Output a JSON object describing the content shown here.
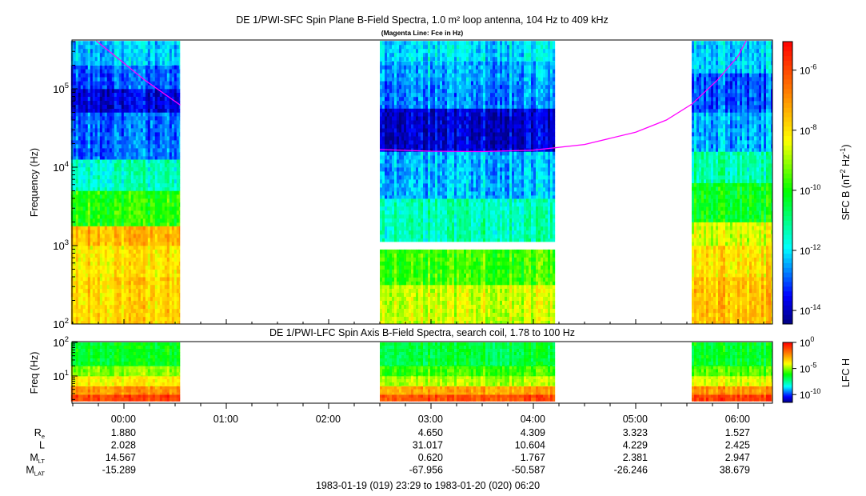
{
  "chart_data": [
    {
      "type": "heatmap",
      "title": "DE 1/PWI-SFC  Spin Plane B-Field Spectra, 1.0 m² loop antenna, 104 Hz to 409 kHz",
      "subtitle": "(Magenta Line: Fce in Hz)",
      "ylabel": "Frequency (Hz)",
      "yscale": "log",
      "ylim_hz": [
        100,
        409000
      ],
      "yticks": [
        {
          "exp": "2"
        },
        {
          "exp": "3"
        },
        {
          "exp": "4"
        },
        {
          "exp": "5"
        }
      ],
      "colorbar": {
        "label": "SFC B (nT",
        "label_sup1": "2",
        "label_mid": " Hz",
        "label_sup2": "-1",
        "label_end": ")",
        "range_log10": [
          -14.45,
          -5.05
        ],
        "ticks": [
          {
            "exp": "-6",
            "v": -6
          },
          {
            "exp": "-8",
            "v": -8
          },
          {
            "exp": "-10",
            "v": -10
          },
          {
            "exp": "-12",
            "v": -12
          },
          {
            "exp": "-14",
            "v": -14
          }
        ]
      },
      "data_blocks": [
        {
          "start_h": -0.517,
          "end_h": 0.547,
          "bands": [
            [
              2.0,
              2.6,
              -7.8
            ],
            [
              2.6,
              3.0,
              -8.0
            ],
            [
              3.0,
              3.25,
              -7.4
            ],
            [
              3.25,
              3.7,
              -9.8
            ],
            [
              3.7,
              4.1,
              -11.4
            ],
            [
              4.1,
              4.7,
              -12.8
            ],
            [
              4.7,
              5.0,
              -13.7
            ],
            [
              5.0,
              5.3,
              -12.9
            ],
            [
              5.3,
              5.61,
              -12.2
            ]
          ]
        },
        {
          "start_h": 2.5,
          "end_h": 4.21,
          "bands": [
            [
              2.0,
              2.5,
              -8.6
            ],
            [
              2.5,
              2.95,
              -9.6
            ],
            [
              3.05,
              3.6,
              -11.3
            ],
            [
              3.6,
              4.2,
              -12.3
            ],
            [
              4.2,
              4.75,
              -13.8
            ],
            [
              4.75,
              5.1,
              -12.6
            ],
            [
              5.1,
              5.35,
              -12.4
            ],
            [
              5.35,
              5.61,
              -12.0
            ]
          ]
        },
        {
          "start_h": 5.547,
          "end_h": 6.333,
          "bands": [
            [
              2.0,
              2.6,
              -7.6
            ],
            [
              2.6,
              3.0,
              -8.0
            ],
            [
              3.0,
              3.3,
              -8.6
            ],
            [
              3.3,
              3.8,
              -10.2
            ],
            [
              3.8,
              4.2,
              -11.3
            ],
            [
              4.2,
              4.7,
              -12.4
            ],
            [
              4.7,
              5.2,
              -13.0
            ],
            [
              5.2,
              5.61,
              -12.2
            ]
          ]
        }
      ],
      "gap_log10_hz": [
        2.96,
        3.02
      ],
      "fce_line": [
        {
          "segment": [
            [
              -0.27,
              409000
            ],
            [
              -0.05,
              240000
            ],
            [
              0.2,
              130000
            ],
            [
              0.55,
              62000
            ]
          ]
        },
        {
          "segment": [
            [
              2.5,
              16800
            ],
            [
              3.0,
              16000
            ],
            [
              3.5,
              15800
            ],
            [
              4.0,
              16500
            ],
            [
              4.5,
              19500
            ],
            [
              5.0,
              28000
            ],
            [
              5.3,
              40000
            ],
            [
              5.55,
              64000
            ],
            [
              5.8,
              130000
            ],
            [
              6.0,
              260000
            ],
            [
              6.08,
              409000
            ]
          ]
        }
      ]
    },
    {
      "type": "heatmap",
      "title": "DE 1/PWI-LFC  Spin Axis B-Field Spectra, search coil, 1.78 to 100 Hz",
      "ylabel": "Freq (Hz)",
      "yscale": "log",
      "ylim_hz": [
        1.78,
        100
      ],
      "yticks": [
        {
          "exp": "1"
        },
        {
          "exp": "2"
        }
      ],
      "colorbar": {
        "label": "LFC H",
        "range_log10": [
          -11.5,
          0
        ],
        "ticks": [
          {
            "exp": "0",
            "v": 0
          },
          {
            "exp": "-5",
            "v": -5
          },
          {
            "exp": "-10",
            "v": -10
          }
        ]
      },
      "data_blocks": [
        {
          "start_h": -0.517,
          "end_h": 0.547,
          "bands": [
            [
              0.25,
              0.45,
              -1.0
            ],
            [
              0.45,
              0.7,
              -2.3
            ],
            [
              0.7,
              1.0,
              -3.8
            ],
            [
              1.0,
              1.3,
              -5.0
            ],
            [
              1.3,
              2.0,
              -6.3
            ]
          ]
        },
        {
          "start_h": 2.5,
          "end_h": 4.21,
          "bands": [
            [
              0.25,
              0.45,
              -1.2
            ],
            [
              0.45,
              0.7,
              -2.6
            ],
            [
              0.7,
              1.0,
              -4.6
            ],
            [
              1.0,
              1.3,
              -5.6
            ],
            [
              1.3,
              2.0,
              -6.6
            ]
          ]
        },
        {
          "start_h": 5.547,
          "end_h": 6.333,
          "bands": [
            [
              0.25,
              0.45,
              -1.0
            ],
            [
              0.45,
              0.7,
              -2.4
            ],
            [
              0.7,
              1.0,
              -4.2
            ],
            [
              1.0,
              1.3,
              -5.4
            ],
            [
              1.3,
              2.0,
              -6.4
            ]
          ]
        }
      ]
    }
  ],
  "time_axis": {
    "range_h": [
      -0.517,
      6.333
    ],
    "ticks": [
      {
        "h": 0,
        "label": "00:00"
      },
      {
        "h": 1,
        "label": "01:00"
      },
      {
        "h": 2,
        "label": "02:00"
      },
      {
        "h": 3,
        "label": "03:00"
      },
      {
        "h": 4,
        "label": "04:00"
      },
      {
        "h": 5,
        "label": "05:00"
      },
      {
        "h": 6,
        "label": "06:00"
      }
    ],
    "range_label": "1983-01-19 (019) 23:29 to 1983-01-20 (020) 06:20"
  },
  "ephemeris": {
    "rows": [
      {
        "name": "R",
        "sub": "e",
        "values": [
          "1.880",
          "",
          "",
          "4.650",
          "4.309",
          "3.323",
          "1.527"
        ]
      },
      {
        "name": "L",
        "sub": "",
        "values": [
          "2.028",
          "",
          "",
          "31.017",
          "10.604",
          "4.229",
          "2.425"
        ]
      },
      {
        "name": "M",
        "sub": "LT",
        "values": [
          "14.567",
          "",
          "",
          "0.620",
          "1.767",
          "2.381",
          "2.947"
        ]
      },
      {
        "name": "M",
        "sub": "LAT",
        "values": [
          "-15.289",
          "",
          "",
          "-67.956",
          "-50.587",
          "-26.246",
          "38.679"
        ]
      }
    ]
  },
  "colors": {
    "fce_line": "#ff00ff",
    "axis": "#000000"
  }
}
